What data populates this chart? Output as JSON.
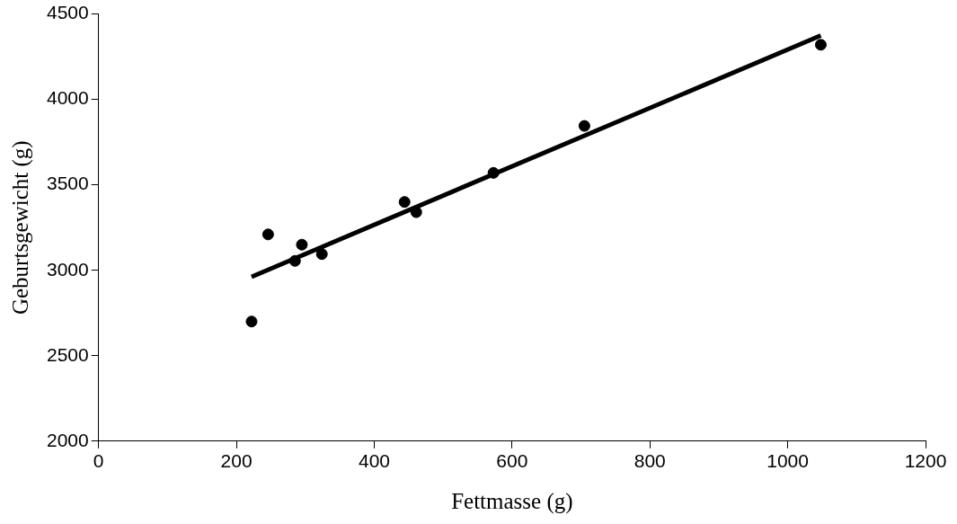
{
  "chart_data": {
    "type": "scatter",
    "xlabel": "Fettmasse (g)",
    "ylabel": "Geburtsgewicht (g)",
    "xlim": [
      0,
      1200
    ],
    "xticks": [
      0,
      200,
      400,
      600,
      800,
      1000,
      1200
    ],
    "ylim": [
      2000,
      4500
    ],
    "yticks": [
      2000,
      2500,
      3000,
      3500,
      4000,
      4500
    ],
    "grid": false,
    "legend": false,
    "marker": "circle",
    "series": [
      {
        "color": "#000000",
        "x": [
          222,
          246,
          285,
          295,
          324,
          444,
          461,
          573,
          705,
          1048
        ],
        "values": [
          2700,
          3210,
          3055,
          3150,
          3095,
          3400,
          3340,
          3570,
          3845,
          4320
        ]
      },
      {
        "type": "line",
        "color": "#000000",
        "marker": "none",
        "line_style": "solid",
        "x": [
          222,
          1048
        ],
        "values": [
          2962,
          4374
        ]
      }
    ]
  }
}
